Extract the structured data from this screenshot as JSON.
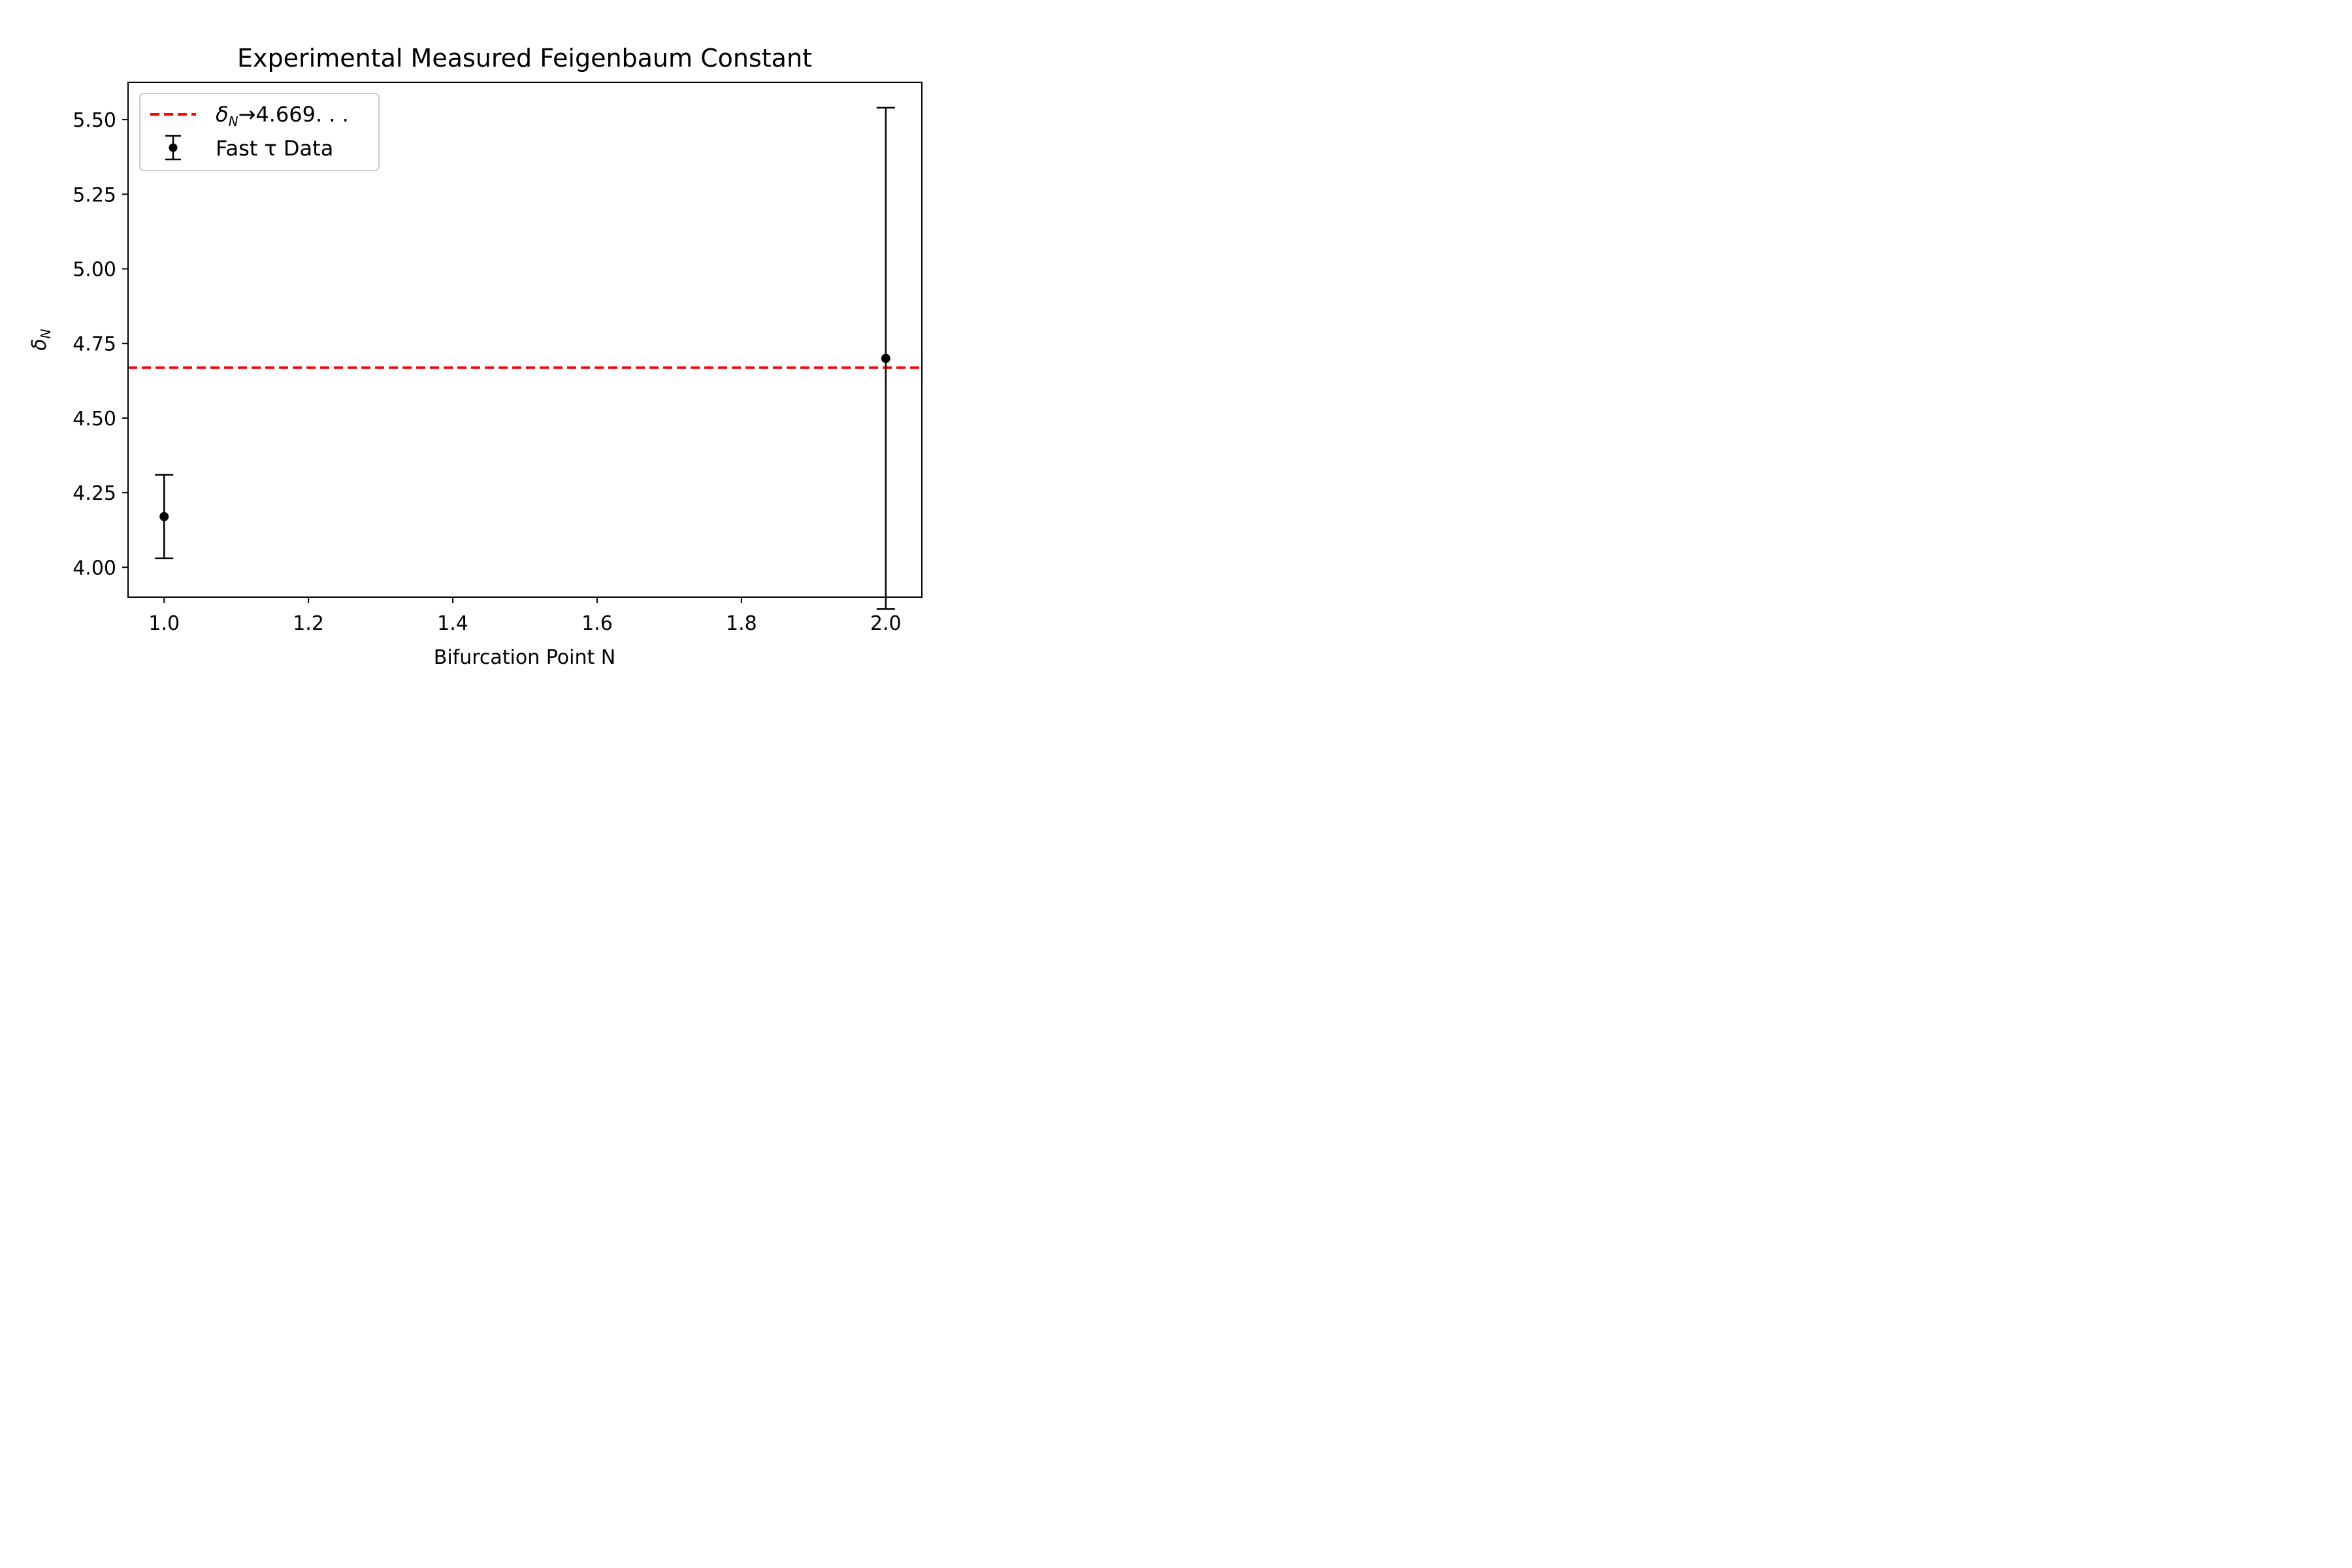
{
  "chart_data": {
    "type": "scatter",
    "title": "Experimental Measured Feigenbaum Constant",
    "xlabel": "Bifurcation Point N",
    "ylabel": "δ",
    "ylabel_sub": "N",
    "xlim": [
      0.95,
      2.05
    ],
    "ylim": [
      3.9,
      5.625
    ],
    "xticks": [
      1.0,
      1.2,
      1.4,
      1.6,
      1.8,
      2.0
    ],
    "xtick_labels": [
      "1.0",
      "1.2",
      "1.4",
      "1.6",
      "1.8",
      "2.0"
    ],
    "yticks": [
      4.0,
      4.25,
      4.5,
      4.75,
      5.0,
      5.25,
      5.5
    ],
    "ytick_labels": [
      "4.00",
      "4.25",
      "4.50",
      "4.75",
      "5.00",
      "5.25",
      "5.50"
    ],
    "grid": false,
    "legend_position": "top-left",
    "reference_line": {
      "y": 4.669,
      "color": "#ff0000",
      "style": "dashed",
      "label_symbol": "δ",
      "label_sub": "N",
      "label_rest": "→4.669. . ."
    },
    "series": [
      {
        "name": "Fast τ Data",
        "color": "#000000",
        "x": [
          1.0,
          2.0
        ],
        "y": [
          4.17,
          4.7
        ],
        "yerr": [
          0.14,
          0.84
        ]
      }
    ]
  }
}
